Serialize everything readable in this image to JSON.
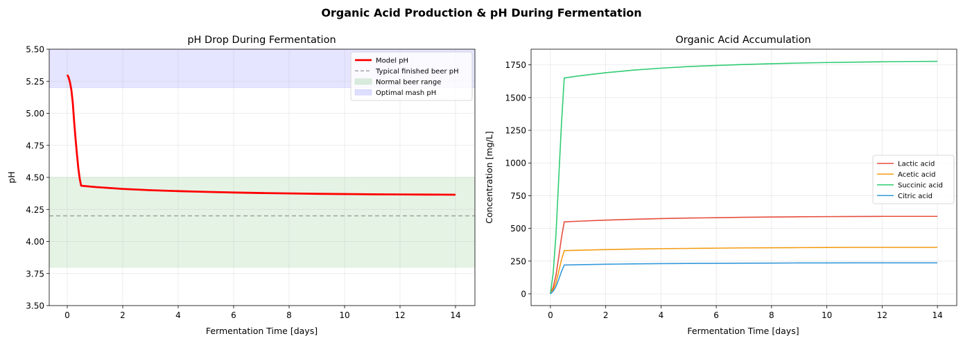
{
  "figure": {
    "suptitle": "Organic Acid Production & pH During Fermentation"
  },
  "chart_data": [
    {
      "type": "line",
      "title": "pH Drop During Fermentation",
      "xlabel": "Fermentation Time [days]",
      "ylabel": "pH",
      "xlim": [
        -0.65,
        14.7
      ],
      "ylim": [
        3.5,
        5.5
      ],
      "xticks": [
        0,
        2,
        4,
        6,
        8,
        10,
        12,
        14
      ],
      "yticks": [
        3.5,
        3.75,
        4.0,
        4.25,
        4.5,
        4.75,
        5.0,
        5.25,
        5.5
      ],
      "ytick_labels": [
        "3.50",
        "3.75",
        "4.00",
        "4.25",
        "4.50",
        "4.75",
        "5.00",
        "5.25",
        "5.50"
      ],
      "grid": true,
      "legend_position": "upper-right",
      "bands": [
        {
          "name": "Normal beer range",
          "y0": 3.8,
          "y1": 4.5,
          "color": "#2ca02c",
          "opacity": 0.12
        },
        {
          "name": "Optimal mash pH",
          "y0": 5.2,
          "y1": 5.5,
          "color": "#0000ff",
          "opacity": 0.1
        }
      ],
      "hlines": [
        {
          "name": "Typical finished beer pH",
          "y": 4.2,
          "color": "#808080",
          "dash": "6,4",
          "opacity": 0.7
        }
      ],
      "series": [
        {
          "name": "Model pH",
          "color": "#ff0000",
          "x": [
            0,
            0.05,
            0.1,
            0.15,
            0.2,
            0.25,
            0.3,
            0.35,
            0.4,
            0.45,
            0.5,
            1,
            2,
            3,
            4,
            5,
            6,
            7,
            8,
            9,
            10,
            11,
            12,
            13,
            14
          ],
          "y": [
            5.3,
            5.28,
            5.24,
            5.18,
            5.08,
            4.93,
            4.8,
            4.68,
            4.57,
            4.49,
            4.435,
            4.425,
            4.41,
            4.4,
            4.393,
            4.387,
            4.382,
            4.378,
            4.375,
            4.372,
            4.37,
            4.368,
            4.367,
            4.366,
            4.365
          ]
        }
      ]
    },
    {
      "type": "line",
      "title": "Organic Acid Accumulation",
      "xlabel": "Fermentation Time [days]",
      "ylabel": "Concentration [mg/L]",
      "xlim": [
        -0.7,
        14.7
      ],
      "ylim": [
        -90,
        1870
      ],
      "xticks": [
        0,
        2,
        4,
        6,
        8,
        10,
        12,
        14
      ],
      "yticks": [
        0,
        250,
        500,
        750,
        1000,
        1250,
        1500,
        1750
      ],
      "ytick_labels": [
        "0",
        "250",
        "500",
        "750",
        "1000",
        "1250",
        "1500",
        "1750"
      ],
      "grid": true,
      "legend_position": "center-right",
      "series": [
        {
          "name": "Lactic acid",
          "color": "#e74c3c",
          "x": [
            0,
            0.1,
            0.2,
            0.3,
            0.4,
            0.5,
            1,
            2,
            3,
            4,
            5,
            6,
            7,
            8,
            9,
            10,
            11,
            12,
            13,
            14
          ],
          "y": [
            0,
            50,
            140,
            280,
            430,
            550,
            555,
            563,
            570,
            575,
            579,
            582,
            585,
            587,
            589,
            590,
            591,
            592,
            592,
            592
          ]
        },
        {
          "name": "Acetic acid",
          "color": "#f39c12",
          "x": [
            0,
            0.1,
            0.2,
            0.3,
            0.4,
            0.5,
            1,
            2,
            3,
            4,
            5,
            6,
            7,
            8,
            9,
            10,
            11,
            12,
            13,
            14
          ],
          "y": [
            0,
            30,
            85,
            170,
            260,
            330,
            333,
            338,
            342,
            345,
            347,
            349,
            351,
            352,
            353,
            354,
            355,
            355,
            355,
            355
          ]
        },
        {
          "name": "Succinic acid",
          "color": "#2ecc71",
          "x": [
            0,
            0.1,
            0.2,
            0.3,
            0.4,
            0.5,
            1,
            2,
            3,
            4,
            5,
            6,
            7,
            8,
            9,
            10,
            11,
            12,
            13,
            14
          ],
          "y": [
            0,
            160,
            450,
            880,
            1300,
            1650,
            1665,
            1690,
            1710,
            1725,
            1737,
            1746,
            1753,
            1759,
            1764,
            1768,
            1771,
            1774,
            1776,
            1777
          ]
        },
        {
          "name": "Citric acid",
          "color": "#3498db",
          "x": [
            0,
            0.1,
            0.2,
            0.3,
            0.4,
            0.5,
            1,
            2,
            3,
            4,
            5,
            6,
            7,
            8,
            9,
            10,
            11,
            12,
            13,
            14
          ],
          "y": [
            0,
            20,
            55,
            110,
            170,
            220,
            222,
            226,
            229,
            231,
            232,
            233,
            234,
            235,
            236,
            236,
            237,
            237,
            237,
            237
          ]
        }
      ]
    }
  ]
}
